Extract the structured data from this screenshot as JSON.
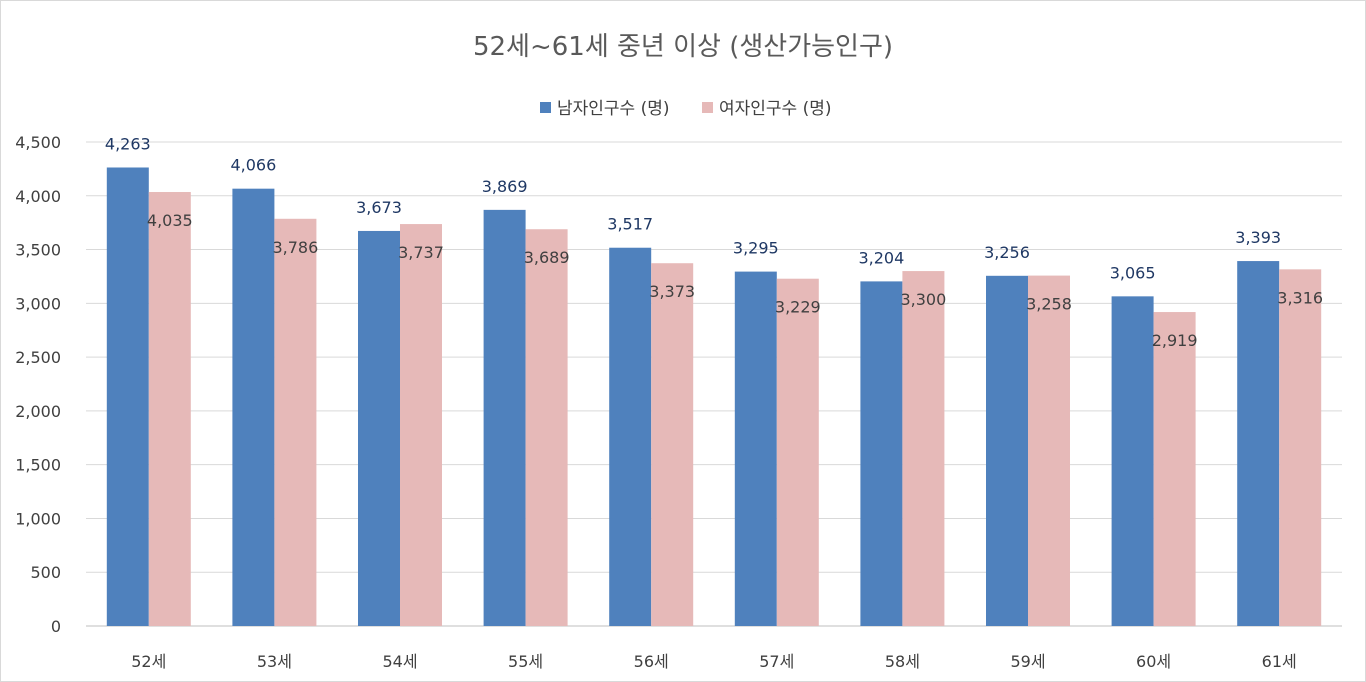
{
  "chart_data": {
    "type": "bar",
    "title": "52세~61세 중년 이상 (생산가능인구)",
    "categories": [
      "52세",
      "53세",
      "54세",
      "55세",
      "56세",
      "57세",
      "58세",
      "59세",
      "60세",
      "61세"
    ],
    "series": [
      {
        "name": "남자인구수 (명)",
        "color": "#4f81bd",
        "values": [
          4263,
          4066,
          3673,
          3869,
          3517,
          3295,
          3204,
          3256,
          3065,
          3393
        ],
        "labels": [
          "4,263",
          "4,066",
          "3,673",
          "3,869",
          "3,517",
          "3,295",
          "3,204",
          "3,256",
          "3,065",
          "3,393"
        ],
        "label_color": "#1f3864"
      },
      {
        "name": "여자인구수 (명)",
        "color": "#e6b9b8",
        "values": [
          4035,
          3786,
          3737,
          3689,
          3373,
          3229,
          3300,
          3258,
          2919,
          3316
        ],
        "labels": [
          "4,035",
          "3,786",
          "3,737",
          "3,689",
          "3,373",
          "3,229",
          "3,300",
          "3,258",
          "2,919",
          "3,316"
        ],
        "label_color": "#404040"
      }
    ],
    "ylim": [
      0,
      4500
    ],
    "yticks": [
      0,
      500,
      1000,
      1500,
      2000,
      2500,
      3000,
      3500,
      4000,
      4500
    ],
    "ytick_labels": [
      "0",
      "500",
      "1,000",
      "1,500",
      "2,000",
      "2,500",
      "3,000",
      "3,500",
      "4,000",
      "4,500"
    ],
    "grid": true,
    "legend_position": "top-center",
    "gridline_color": "#d9d9d9"
  }
}
